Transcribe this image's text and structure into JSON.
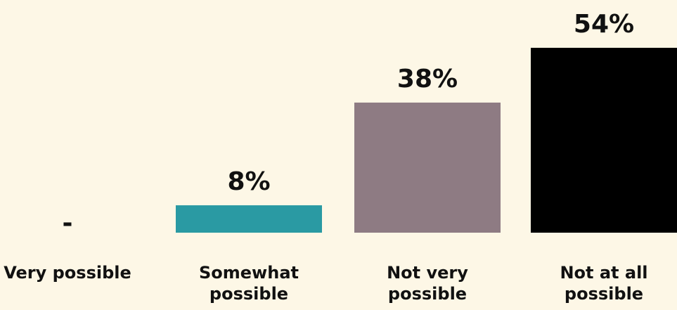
{
  "chart_data": {
    "type": "bar",
    "categories": [
      [
        "Very possible"
      ],
      [
        "Somewhat",
        "possible"
      ],
      [
        "Not very",
        "possible"
      ],
      [
        "Not at all",
        "possible"
      ]
    ],
    "values": [
      0,
      8,
      38,
      54
    ],
    "value_labels": [
      "-",
      "8%",
      "38%",
      "54%"
    ],
    "colors": [
      "#2a9aa3",
      "#2a9aa3",
      "#8e7b83",
      "#000000"
    ],
    "ylim": [
      0,
      54
    ],
    "grid": false,
    "legend": "none"
  }
}
